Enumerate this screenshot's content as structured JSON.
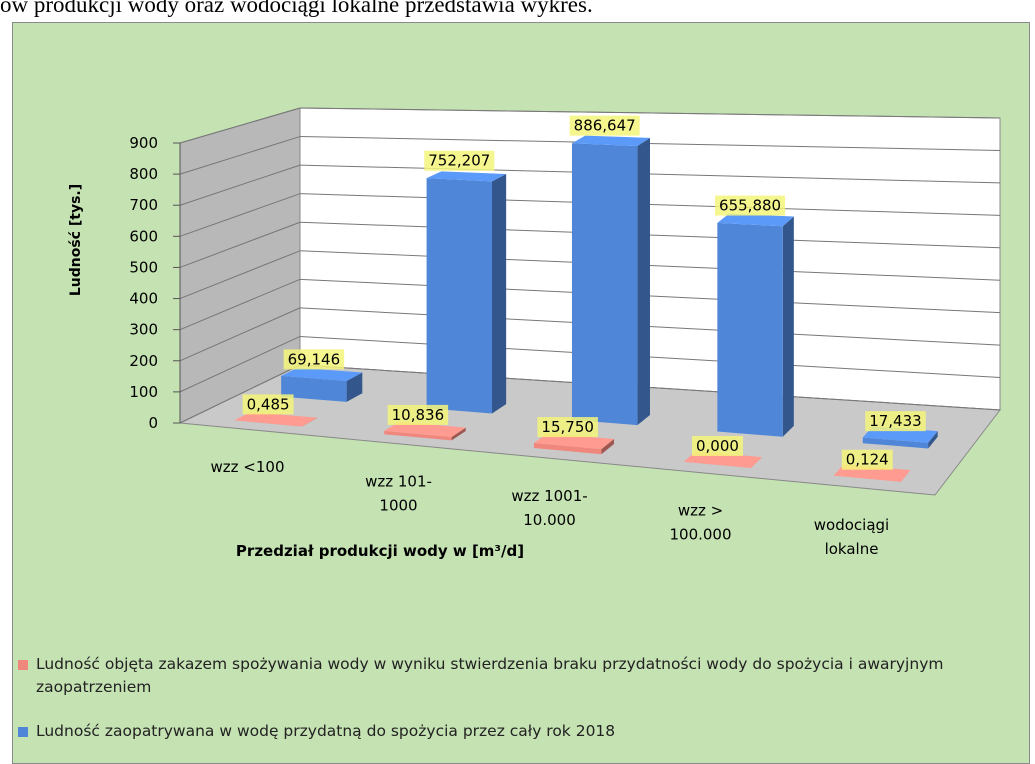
{
  "page_text": "ów produkcji wody oraz wodociągi lokalne przedstawia wykres.",
  "chart_data": {
    "type": "bar3d",
    "y_label": "Ludność [tys.]",
    "x_label": "Przedział produkcji wody w [m³/d]",
    "categories": [
      "wzz <100",
      "wzz 101-\n1000",
      "wzz 1001-\n10.000",
      "wzz >\n100.000",
      "wodociągi\nlokalne"
    ],
    "series": [
      {
        "name": "Ludność objęta zakazem spożywania wody w wyniku stwierdzenia braku przydatności wody do spożycia i awaryjnym zaopatrzeniem",
        "color": "#f0877d",
        "values": [
          0.485,
          10.836,
          15.75,
          0,
          0.124
        ],
        "value_labels": [
          "0,485",
          "10,836",
          "15,750",
          "0,000",
          "0,124"
        ]
      },
      {
        "name": "Ludność zaopatrywana w wodę przydatną do spożycia przez cały rok 2018",
        "color": "#4f86d8",
        "values": [
          69.146,
          752.207,
          886.647,
          655.88,
          17.433
        ],
        "value_labels": [
          "69,146",
          "752,207",
          "886,647",
          "655,880",
          "17,433"
        ]
      }
    ],
    "ylim": [
      0,
      900
    ],
    "yticks": [
      0,
      100,
      200,
      300,
      400,
      500,
      600,
      700,
      800,
      900
    ],
    "grid": true
  }
}
